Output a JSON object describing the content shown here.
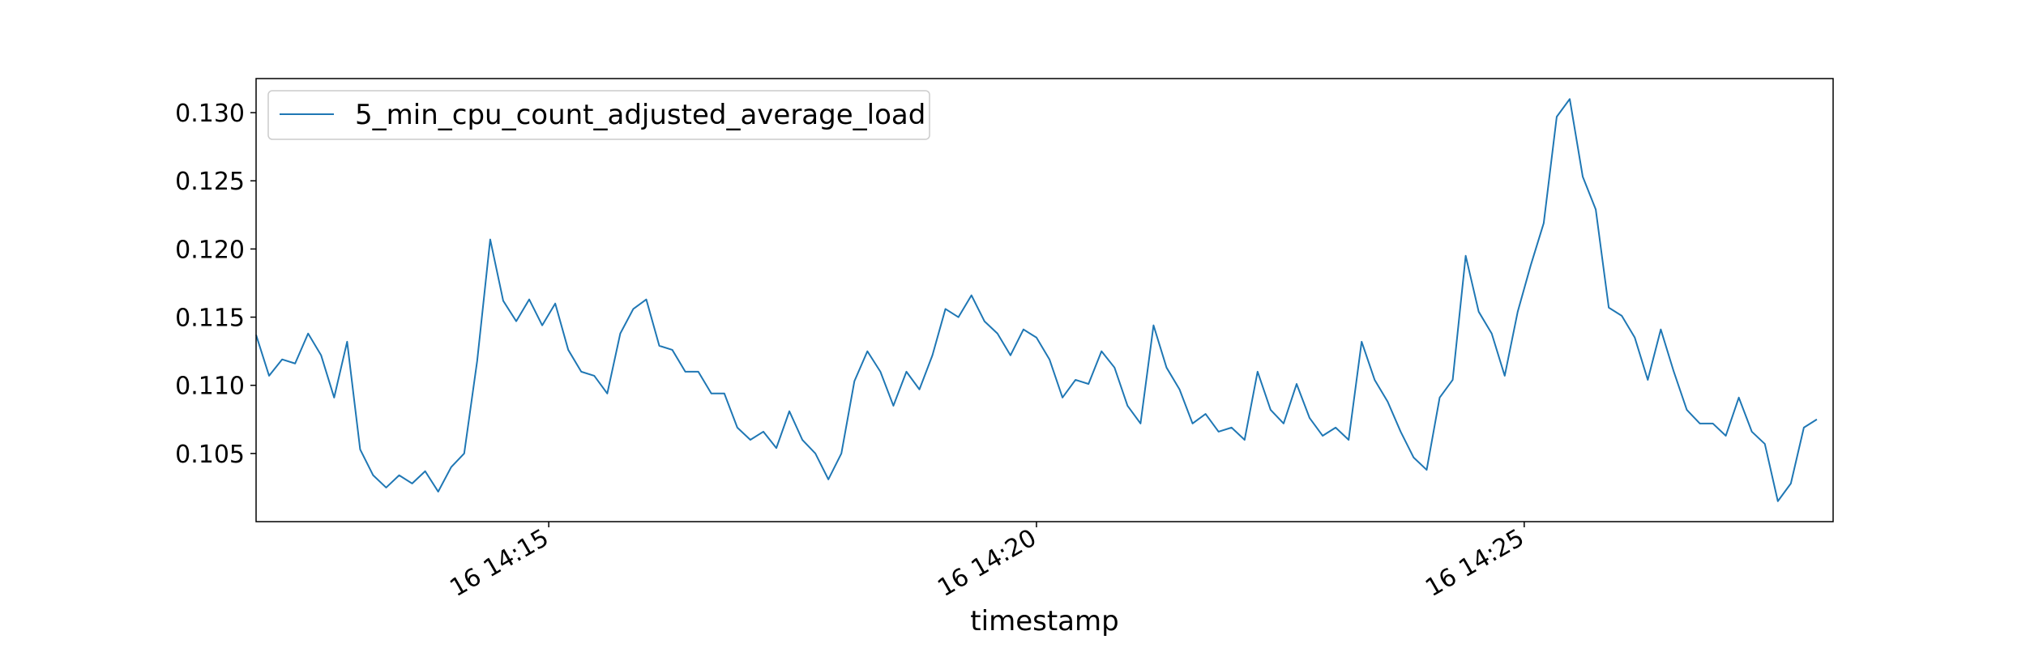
{
  "chart_data": {
    "type": "line",
    "title": "",
    "xlabel": "timestamp",
    "ylabel": "",
    "grid": false,
    "legend_position": "top-left",
    "series_color": "#1f77b4",
    "x_start": "16 14:12:00",
    "x_end": "16 14:28:10",
    "x_step_seconds": 8,
    "x_ticks": [
      {
        "time": "16 14:15:00",
        "label": "16 14:15"
      },
      {
        "time": "16 14:20:00",
        "label": "16 14:20"
      },
      {
        "time": "16 14:25:00",
        "label": "16 14:25"
      }
    ],
    "ylim": [
      0.1,
      0.1325
    ],
    "y_ticks": [
      0.105,
      0.11,
      0.115,
      0.12,
      0.125,
      0.13
    ],
    "y_tick_labels": [
      "0.105",
      "0.110",
      "0.115",
      "0.120",
      "0.125",
      "0.130"
    ],
    "series": [
      {
        "name": "5_min_cpu_count_adjusted_average_load",
        "values": [
          0.1137,
          0.1107,
          0.1119,
          0.1116,
          0.1138,
          0.1122,
          0.1091,
          0.1132,
          0.1053,
          0.1034,
          0.1025,
          0.1034,
          0.1028,
          0.1037,
          0.1022,
          0.104,
          0.105,
          0.1118,
          0.1207,
          0.1162,
          0.1147,
          0.1163,
          0.1144,
          0.116,
          0.1126,
          0.111,
          0.1107,
          0.1094,
          0.1138,
          0.1156,
          0.1163,
          0.1129,
          0.1126,
          0.111,
          0.111,
          0.1094,
          0.1094,
          0.1069,
          0.106,
          0.1066,
          0.1054,
          0.1081,
          0.106,
          0.105,
          0.1031,
          0.105,
          0.1103,
          0.1125,
          0.111,
          0.1085,
          0.111,
          0.1097,
          0.1122,
          0.1156,
          0.115,
          0.1166,
          0.1147,
          0.1138,
          0.1122,
          0.1141,
          0.1135,
          0.1119,
          0.1091,
          0.1104,
          0.1101,
          0.1125,
          0.1113,
          0.1085,
          0.1072,
          0.1144,
          0.1113,
          0.1097,
          0.1072,
          0.1079,
          0.1066,
          0.1069,
          0.106,
          0.111,
          0.1082,
          0.1072,
          0.1101,
          0.1076,
          0.1063,
          0.1069,
          0.106,
          0.1132,
          0.1104,
          0.1088,
          0.1066,
          0.1047,
          0.1038,
          0.1091,
          0.1104,
          0.1195,
          0.1154,
          0.1138,
          0.1107,
          0.1154,
          0.1188,
          0.1219,
          0.1297,
          0.131,
          0.1253,
          0.1229,
          0.1157,
          0.1151,
          0.1135,
          0.1104,
          0.1141,
          0.111,
          0.1082,
          0.1072,
          0.1072,
          0.1063,
          0.1091,
          0.1066,
          0.1057,
          0.1015,
          0.1028,
          0.1069,
          0.1075
        ]
      }
    ]
  }
}
